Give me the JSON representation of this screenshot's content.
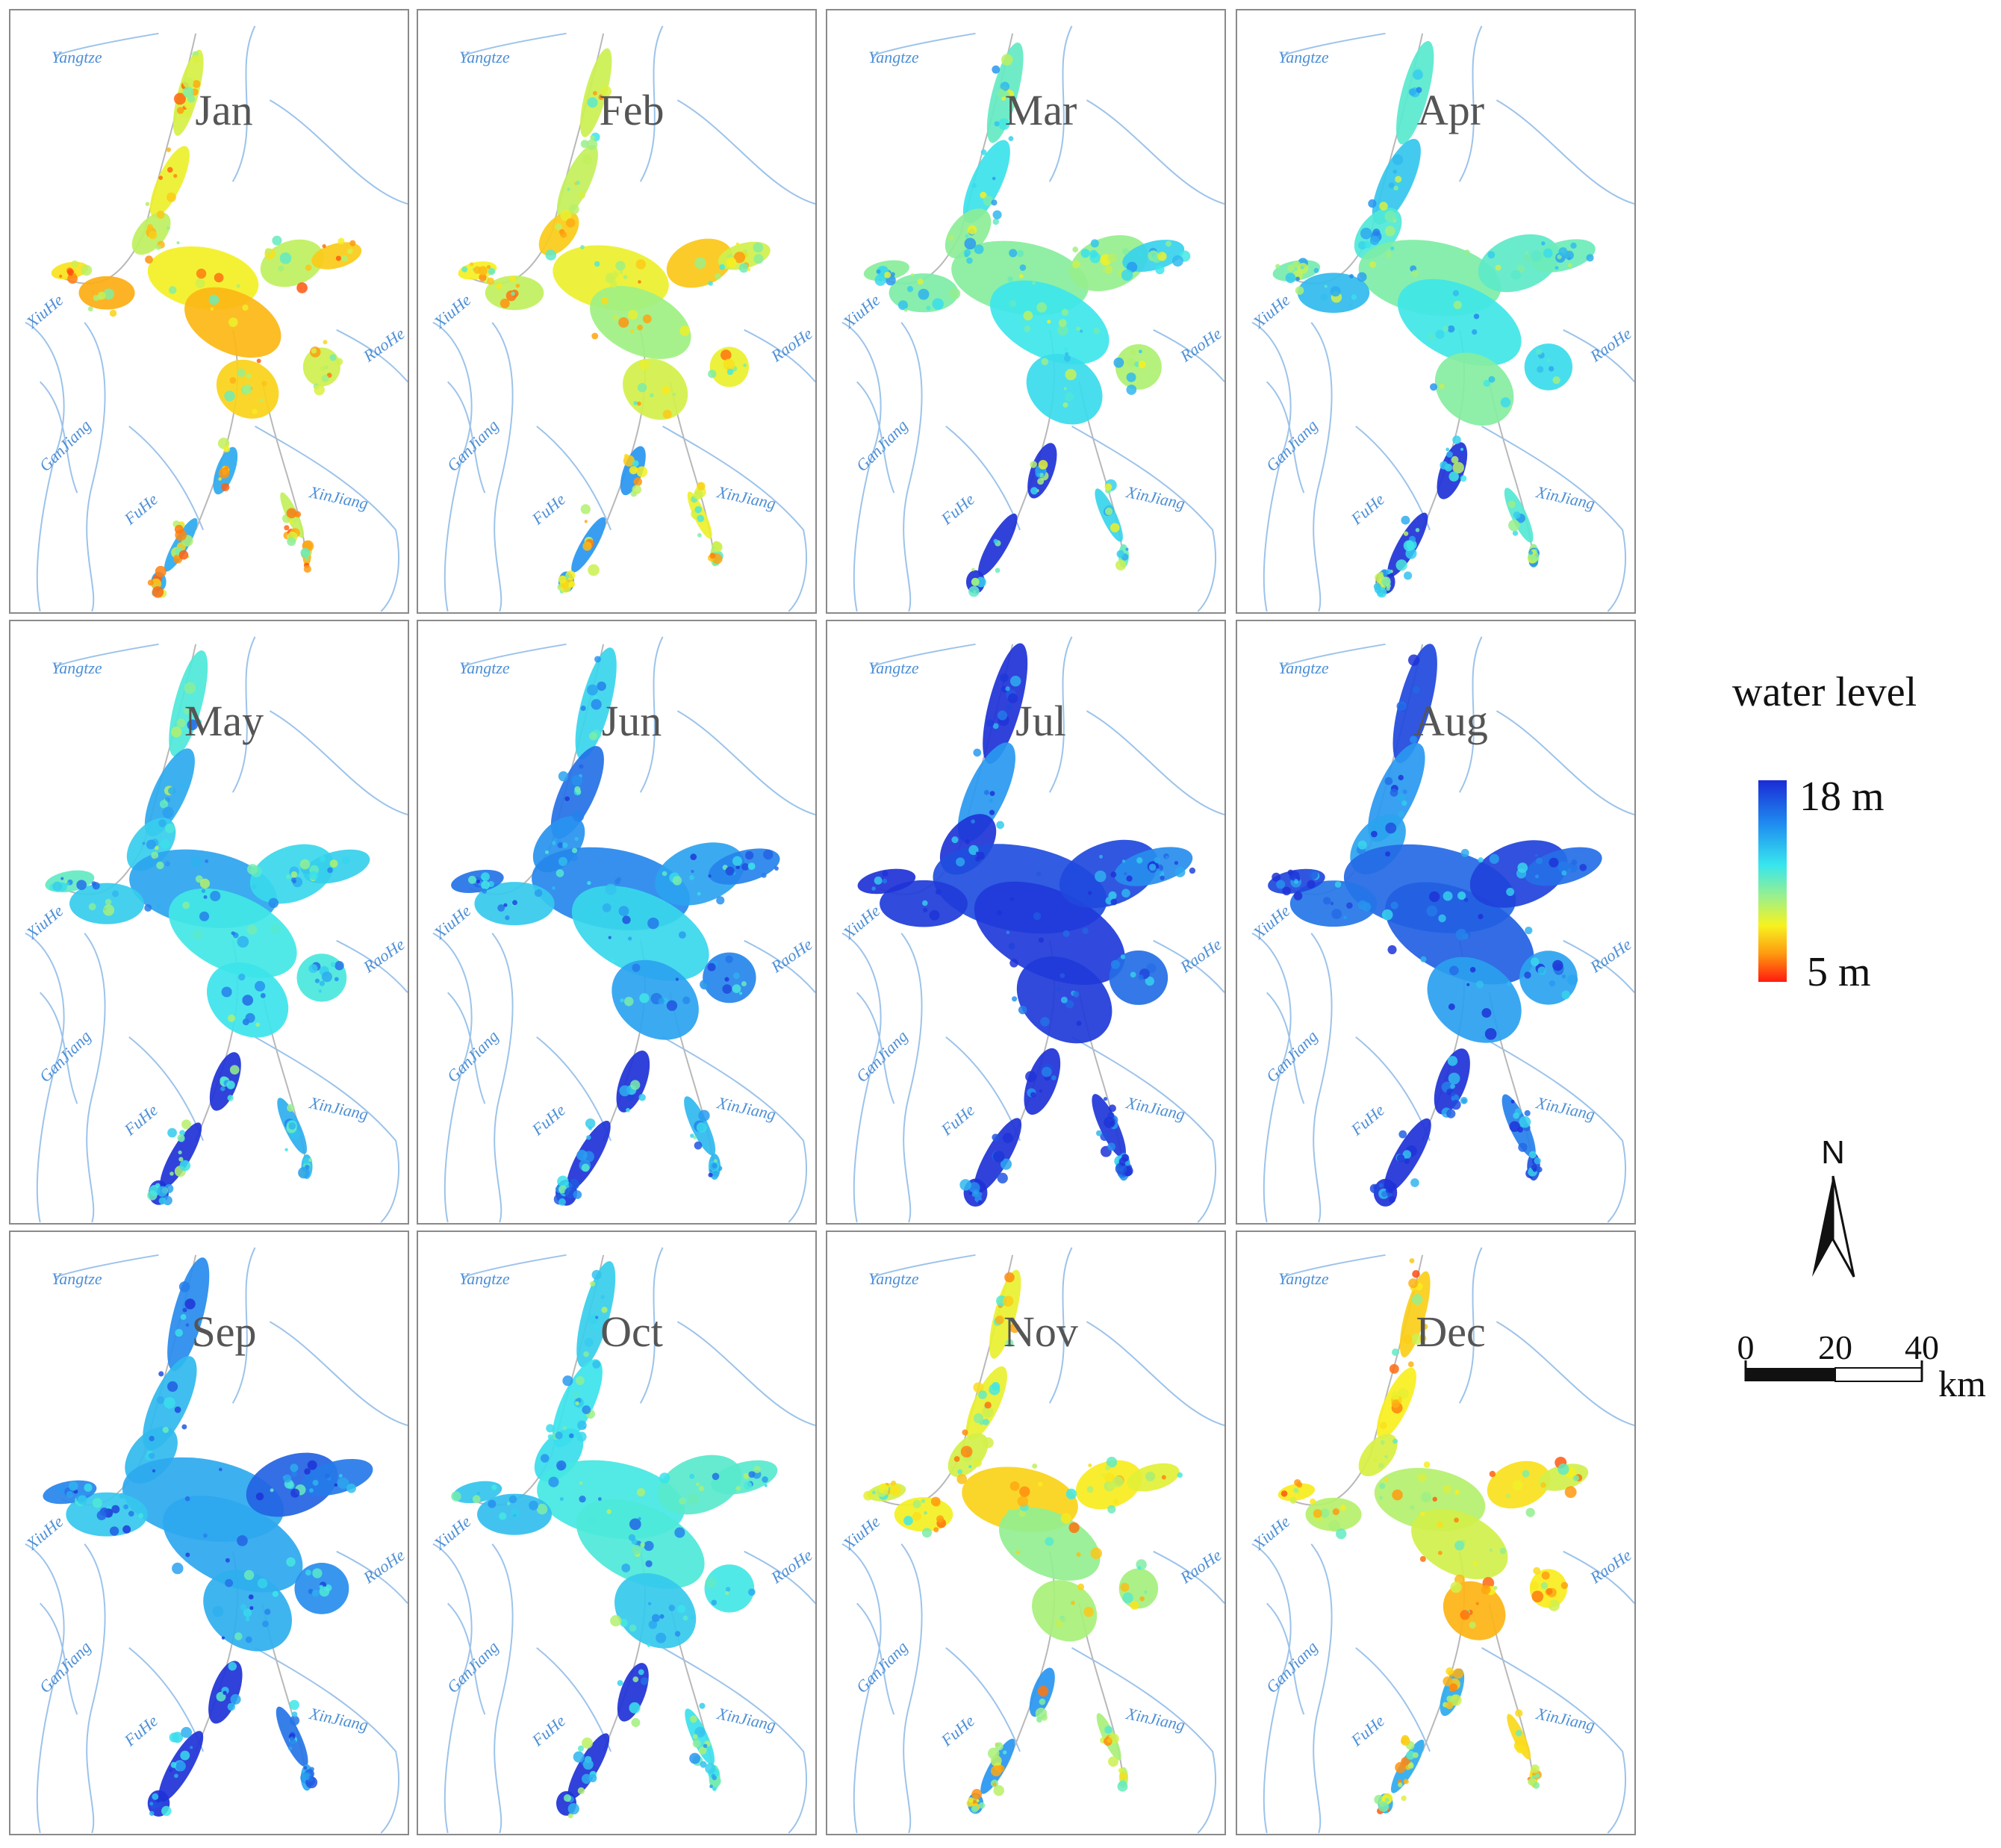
{
  "panels": [
    {
      "month": "Jan",
      "level": 0.3
    },
    {
      "month": "Feb",
      "level": 0.35
    },
    {
      "month": "Mar",
      "level": 0.55
    },
    {
      "month": "Apr",
      "level": 0.6
    },
    {
      "month": "May",
      "level": 0.65
    },
    {
      "month": "Jun",
      "level": 0.75
    },
    {
      "month": "Jul",
      "level": 0.9
    },
    {
      "month": "Aug",
      "level": 0.88
    },
    {
      "month": "Sep",
      "level": 0.78
    },
    {
      "month": "Oct",
      "level": 0.65
    },
    {
      "month": "Nov",
      "level": 0.35
    },
    {
      "month": "Dec",
      "level": 0.3
    }
  ],
  "rivers": {
    "yangtze": "Yangtze",
    "xiuhe": "XiuHe",
    "raohe": "RaoHe",
    "ganjiang": "GanJiang",
    "fuhe": "FuHe",
    "xinjiang": "XinJiang"
  },
  "legend": {
    "title": "water level",
    "max_label": "18 m",
    "min_label": "5 m",
    "colors": [
      "#1a2bd6",
      "#1f8ef0",
      "#37e6ee",
      "#9df08a",
      "#f7f21f",
      "#ff9a10",
      "#ff1a0f"
    ]
  },
  "north_arrow": {
    "label": "N"
  },
  "scale_bar": {
    "ticks": [
      "0",
      "20",
      "40"
    ],
    "unit": "km"
  }
}
